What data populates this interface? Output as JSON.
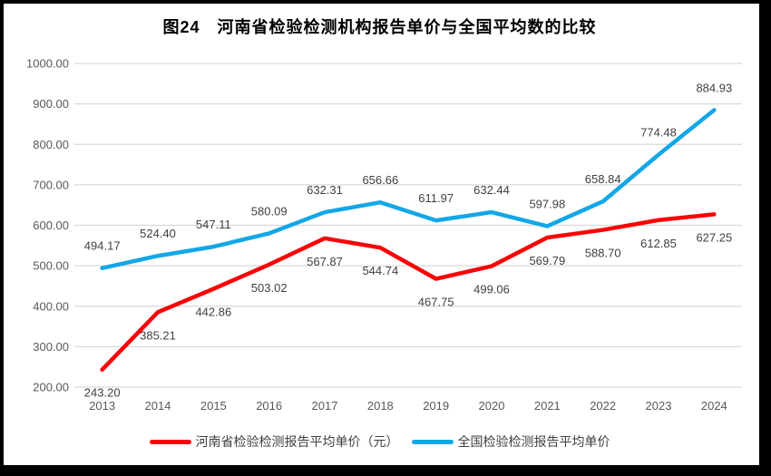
{
  "title": "图24　河南省检验检测机构报告单价与全国平均数的比较",
  "colors": {
    "henan": "#fb0207",
    "national": "#12a7e7",
    "gridline": "#d9d9d9",
    "axis_text": "#595959",
    "label_text": "#404040"
  },
  "chart_data": {
    "type": "line",
    "title": "图24　河南省检验检测机构报告单价与全国平均数的比较",
    "categories": [
      "2013",
      "2014",
      "2015",
      "2016",
      "2017",
      "2018",
      "2019",
      "2020",
      "2021",
      "2022",
      "2023",
      "2024"
    ],
    "series": [
      {
        "name": "河南省检验检测报告平均单价（元）",
        "color_key": "henan",
        "label_position": "below",
        "values": [
          243.2,
          385.21,
          442.86,
          503.02,
          567.87,
          544.74,
          467.75,
          499.06,
          569.79,
          588.7,
          612.85,
          627.25
        ]
      },
      {
        "name": "全国检验检测报告平均单价",
        "color_key": "national",
        "label_position": "above",
        "values": [
          494.17,
          524.4,
          547.11,
          580.09,
          632.31,
          656.66,
          611.97,
          632.44,
          597.98,
          658.84,
          774.48,
          884.93
        ]
      }
    ],
    "ylim": [
      200,
      1000
    ],
    "yticks": [
      200,
      300,
      400,
      500,
      600,
      700,
      800,
      900,
      1000
    ],
    "ytick_labels": [
      "200.00",
      "300.00",
      "400.00",
      "500.00",
      "600.00",
      "700.00",
      "800.00",
      "900.00",
      "1000.00"
    ],
    "grid": true,
    "legend_position": "bottom"
  },
  "legend": {
    "items": [
      {
        "label": "河南省检验检测报告平均单价（元）"
      },
      {
        "label": "全国检验检测报告平均单价"
      }
    ]
  }
}
